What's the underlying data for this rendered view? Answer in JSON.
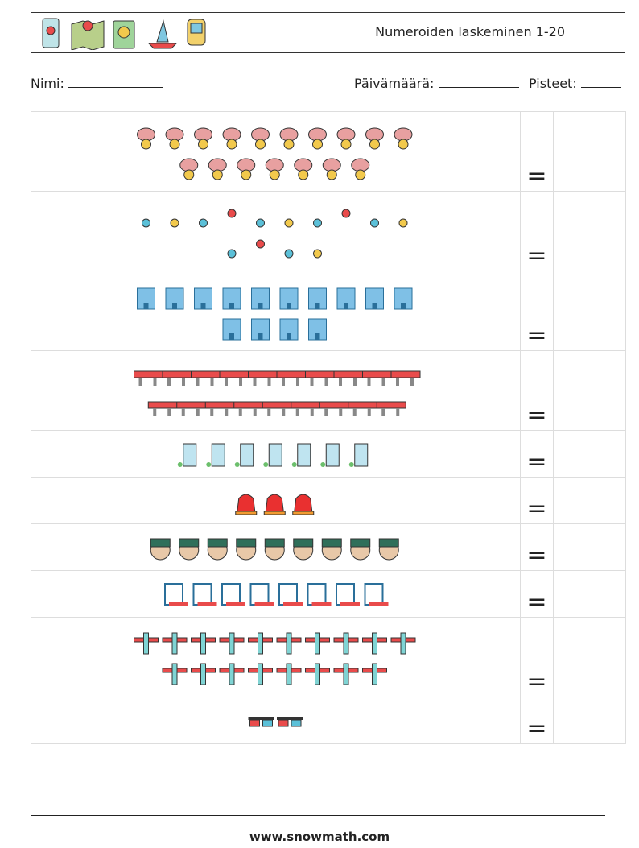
{
  "header": {
    "title": "Numeroiden laskeminen 1-20"
  },
  "fields": {
    "name": "Nimi:",
    "date": "Päivämäärä:",
    "score": "Pisteet:"
  },
  "rows": [
    {
      "count": 17,
      "sign": "="
    },
    {
      "count": 14,
      "sign": "="
    },
    {
      "count": 14,
      "sign": "="
    },
    {
      "count": 19,
      "sign": "="
    },
    {
      "count": 7,
      "sign": "="
    },
    {
      "count": 3,
      "sign": "="
    },
    {
      "count": 9,
      "sign": "="
    },
    {
      "count": 8,
      "sign": "="
    },
    {
      "count": 18,
      "sign": "="
    },
    {
      "count": 2,
      "sign": "="
    }
  ],
  "footer": "www.snowmath.com"
}
